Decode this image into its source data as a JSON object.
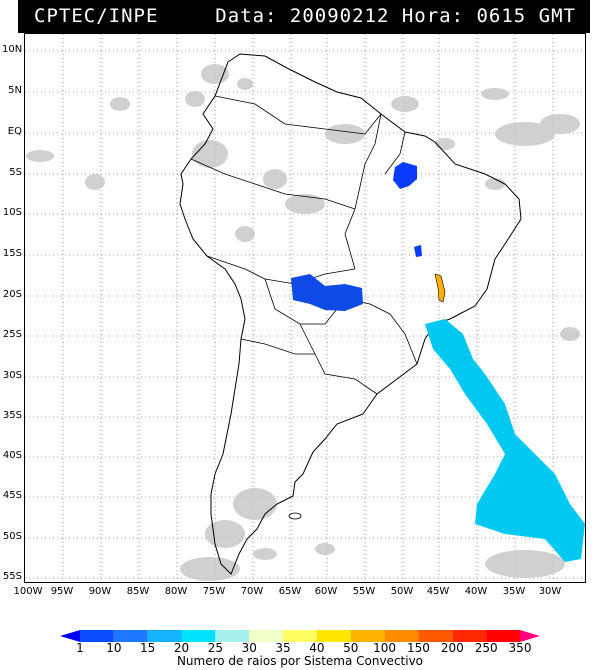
{
  "header": {
    "title": "CPTEC/INPE",
    "datetime": "Data: 20090212 Hora: 0615 GMT"
  },
  "map": {
    "lat_labels": [
      "10N",
      "5N",
      "EQ",
      "5S",
      "10S",
      "15S",
      "20S",
      "25S",
      "30S",
      "35S",
      "40S",
      "45S",
      "50S",
      "55S"
    ],
    "lon_labels": [
      "100W",
      "95W",
      "90W",
      "85W",
      "80W",
      "75W",
      "70W",
      "65W",
      "60W",
      "55W",
      "50W",
      "45W",
      "40W",
      "35W",
      "30W"
    ],
    "gridlines": "dotted",
    "cloud_color": "#c8c8c8",
    "coast_color": "#000000"
  },
  "convective_systems": [
    {
      "region": "Pará",
      "color": "#0a3cff",
      "category": "1-10"
    },
    {
      "region": "Bahia oeste",
      "color": "#0a3cff",
      "category": "1-10"
    },
    {
      "region": "Mato Grosso do Sul / Paraguai",
      "color": "#0f4ae6",
      "category": "1-10"
    },
    {
      "region": "Minas Gerais",
      "color": "#ffb000",
      "category": "50-100"
    },
    {
      "region": "Oceano Atlântico Sul",
      "color": "#00c8f0",
      "category": "20-25"
    }
  ],
  "colorbar": {
    "caption": "Numero de raios por Sistema Convectivo",
    "labels": [
      "1",
      "10",
      "15",
      "20",
      "25",
      "30",
      "35",
      "40",
      "50",
      "100",
      "150",
      "200",
      "250",
      "350"
    ],
    "colors": [
      "#0000ff",
      "#0a4cff",
      "#1e78ff",
      "#14b4ff",
      "#00e0ff",
      "#a8f0f0",
      "#f0ffc8",
      "#ffff64",
      "#ffe600",
      "#ffb400",
      "#ff8c00",
      "#ff5a00",
      "#ff2800",
      "#ff0000",
      "#ff0080"
    ]
  }
}
